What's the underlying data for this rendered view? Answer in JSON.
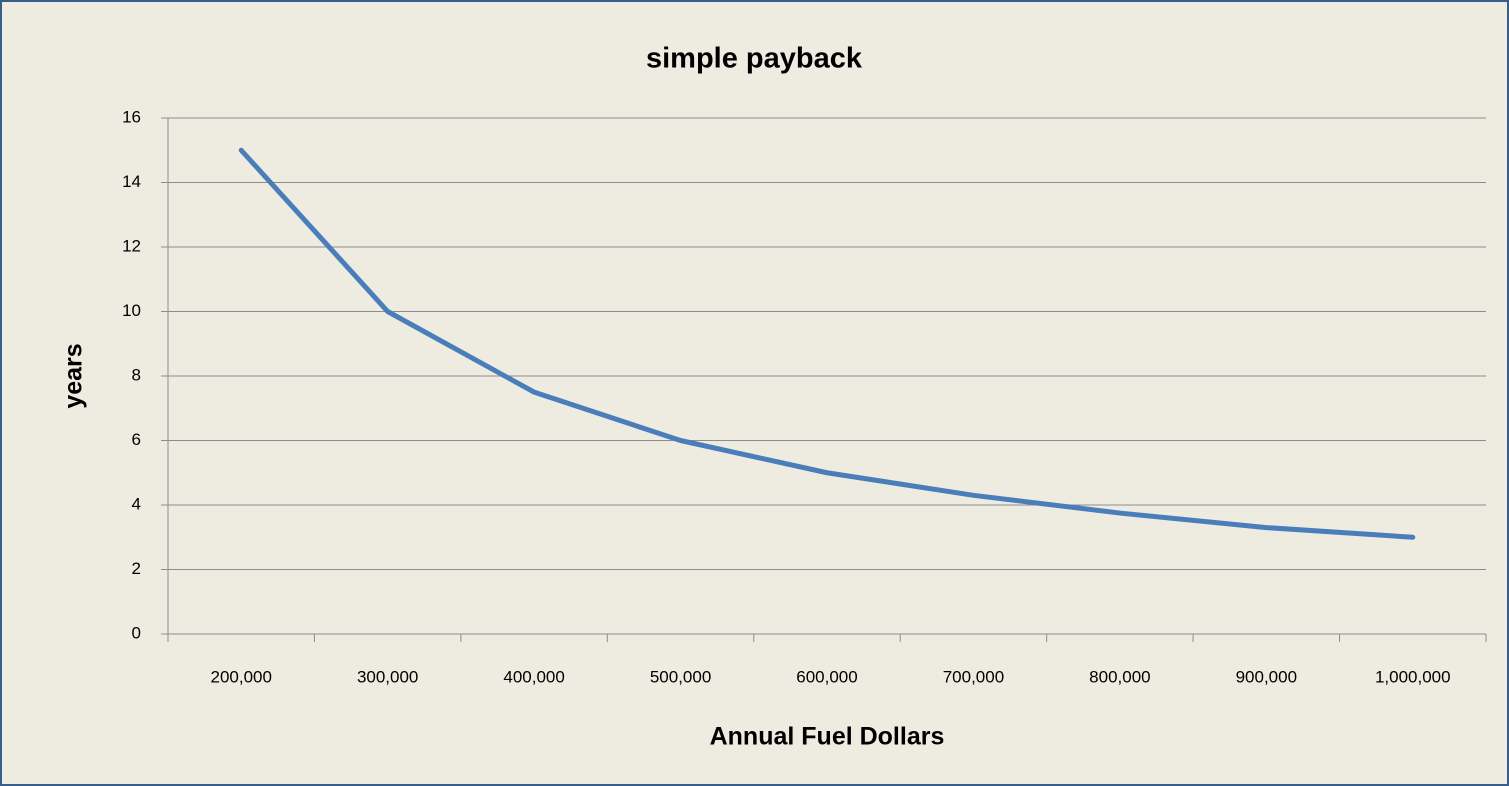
{
  "chart_data": {
    "type": "line",
    "title": "simple payback",
    "x_label": "Annual Fuel Dollars",
    "y_label": "years",
    "categories": [
      "200,000",
      "300,000",
      "400,000",
      "500,000",
      "600,000",
      "700,000",
      "800,000",
      "900,000",
      "1,000,000"
    ],
    "series": [
      {
        "name": "simple payback",
        "color": "#4a7ebb",
        "values": [
          15,
          10,
          7.5,
          6,
          5,
          4.3,
          3.75,
          3.3,
          3
        ]
      }
    ],
    "ylim": [
      0,
      16
    ],
    "yticks": [
      0,
      2,
      4,
      6,
      8,
      10,
      12,
      14,
      16
    ],
    "grid": true,
    "legend": false
  }
}
